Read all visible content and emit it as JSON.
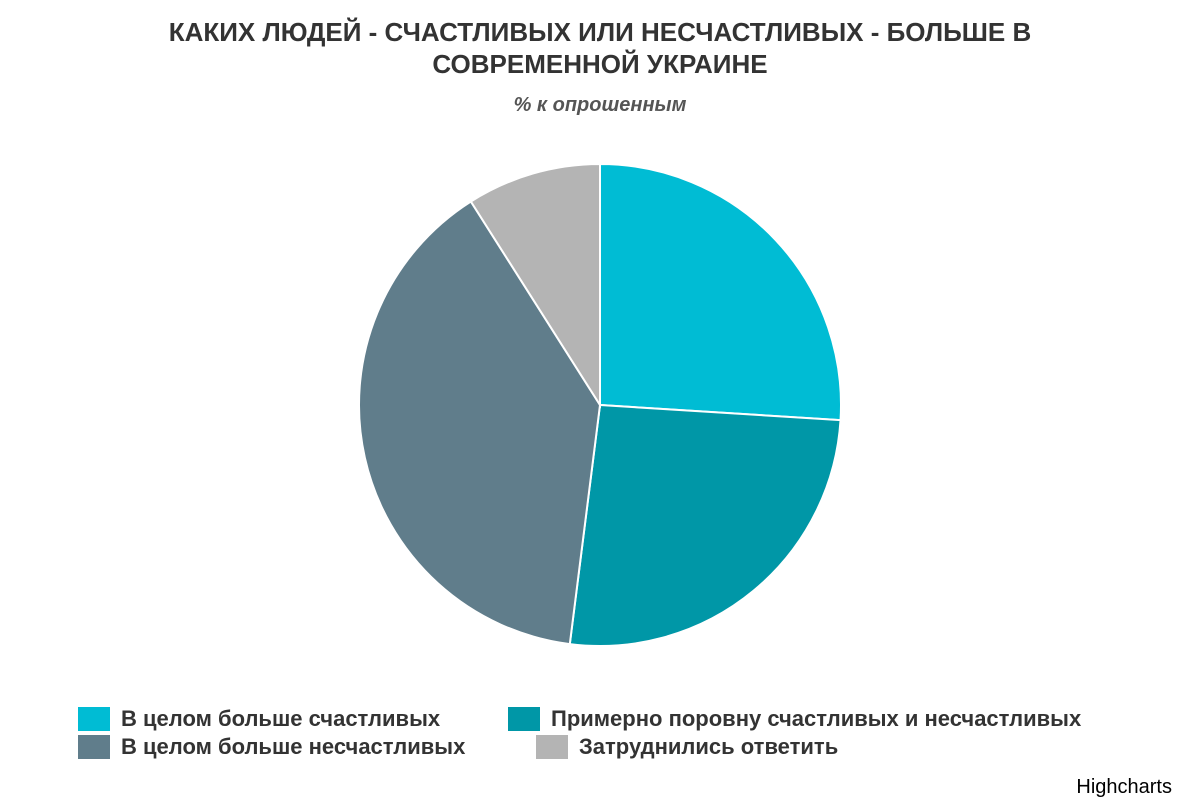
{
  "chart_data": {
    "type": "pie",
    "title": "КАКИХ ЛЮДЕЙ - СЧАСТЛИВЫХ ИЛИ НЕСЧАСТЛИВЫХ - БОЛЬШЕ В СОВРЕМЕННОЙ УКРАИНЕ",
    "subtitle": "% к опрошенным",
    "categories": [
      "В целом больше счастливых",
      "Примерно поровну счастливых и несчастливых",
      "В целом больше несчастливых",
      "Затруднились ответить"
    ],
    "values": [
      26,
      26,
      39,
      9
    ],
    "colors": [
      "#00bcd4",
      "#0097a7",
      "#607d8b",
      "#b4b4b4"
    ],
    "legend": "bottom",
    "credits": "Highcharts"
  }
}
